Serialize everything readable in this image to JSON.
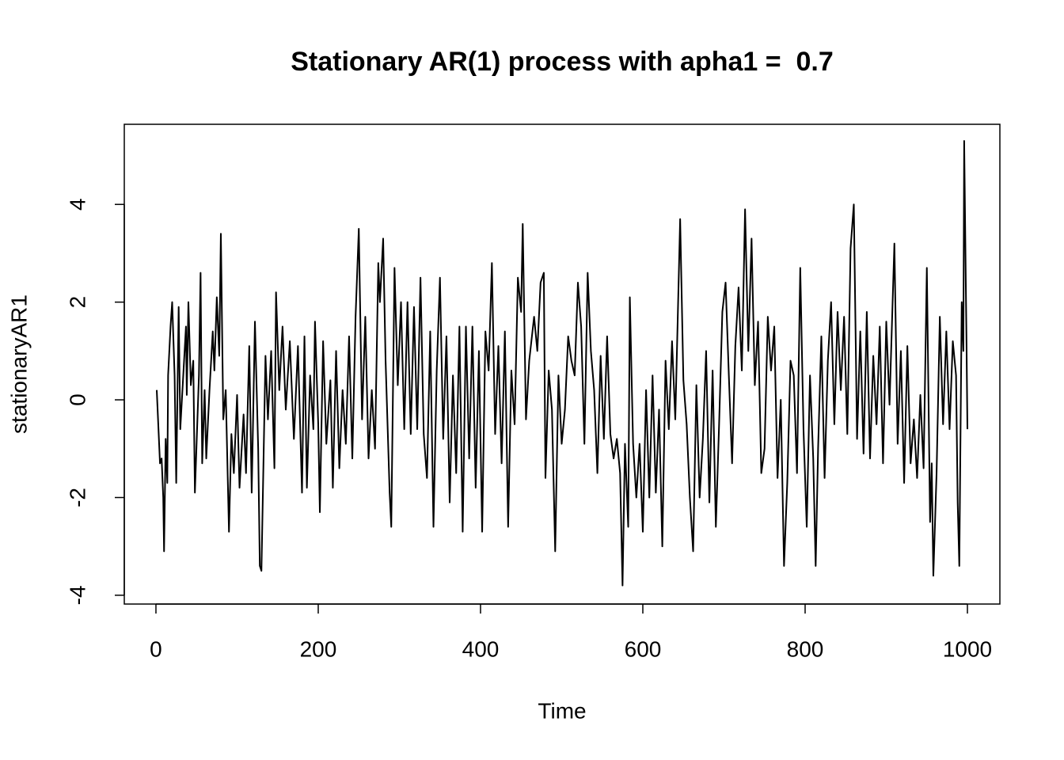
{
  "chart_data": {
    "type": "line",
    "title": "Stationary AR(1) process with apha1 =  0.7",
    "x_label": "Time",
    "y_label": "stationaryAR1",
    "color": "#000000",
    "xlim": [
      -39,
      1040
    ],
    "ylim": [
      -4.18,
      5.64
    ],
    "xticks": [
      0,
      200,
      400,
      600,
      800,
      1000
    ],
    "yticks": [
      -4,
      -2,
      0,
      2,
      4
    ],
    "x": [
      1,
      5,
      7,
      9,
      10,
      12,
      14,
      15,
      18,
      20,
      23,
      25,
      28,
      30,
      33,
      37,
      38,
      40,
      43,
      46,
      48,
      53,
      55,
      57,
      60,
      62,
      66,
      70,
      72,
      75,
      78,
      80,
      83,
      86,
      90,
      93,
      96,
      100,
      103,
      108,
      111,
      115,
      118,
      122,
      126,
      128,
      130,
      135,
      138,
      142,
      146,
      148,
      152,
      156,
      160,
      165,
      170,
      175,
      180,
      183,
      186,
      190,
      194,
      196,
      200,
      202,
      206,
      210,
      215,
      218,
      222,
      226,
      230,
      234,
      238,
      242,
      246,
      250,
      254,
      258,
      262,
      266,
      270,
      274,
      276,
      280,
      283,
      288,
      290,
      294,
      298,
      302,
      306,
      310,
      314,
      318,
      322,
      326,
      330,
      334,
      338,
      342,
      346,
      350,
      354,
      358,
      362,
      366,
      370,
      374,
      378,
      382,
      386,
      390,
      394,
      398,
      402,
      406,
      410,
      414,
      418,
      422,
      426,
      430,
      434,
      438,
      442,
      446,
      450,
      452,
      456,
      460,
      466,
      470,
      474,
      478,
      480,
      484,
      488,
      492,
      496,
      500,
      504,
      508,
      512,
      516,
      520,
      524,
      528,
      532,
      536,
      540,
      544,
      548,
      552,
      556,
      560,
      564,
      568,
      572,
      575,
      578,
      582,
      584,
      588,
      592,
      596,
      600,
      604,
      608,
      612,
      616,
      620,
      624,
      628,
      632,
      636,
      640,
      646,
      650,
      654,
      658,
      662,
      666,
      670,
      674,
      678,
      682,
      686,
      690,
      694,
      698,
      702,
      706,
      710,
      714,
      718,
      722,
      726,
      730,
      734,
      738,
      742,
      746,
      750,
      754,
      758,
      762,
      766,
      770,
      774,
      778,
      782,
      786,
      790,
      794,
      798,
      802,
      806,
      810,
      813,
      816,
      820,
      824,
      828,
      832,
      836,
      840,
      844,
      848,
      852,
      856,
      860,
      864,
      868,
      872,
      876,
      880,
      884,
      888,
      892,
      896,
      900,
      904,
      910,
      914,
      918,
      922,
      926,
      930,
      934,
      938,
      942,
      946,
      950,
      954,
      956,
      958,
      962,
      966,
      970,
      974,
      978,
      982,
      986,
      988,
      990,
      993,
      995,
      996,
      998,
      999,
      1000
    ],
    "values": [
      0.2,
      -1.3,
      -1.2,
      -2,
      -3.1,
      -0.8,
      -1.7,
      0.5,
      1.5,
      2.0,
      0.5,
      -1.7,
      1.9,
      -0.6,
      0.3,
      1.5,
      0.1,
      2.0,
      0.3,
      0.8,
      -1.9,
      0.5,
      2.6,
      -1.3,
      0.2,
      -1.2,
      0.2,
      1.4,
      0.6,
      2.1,
      0.9,
      3.4,
      -0.4,
      0.2,
      -2.7,
      -0.7,
      -1.5,
      0.1,
      -1.8,
      -0.3,
      -1.5,
      1.1,
      -1.9,
      1.6,
      -1.0,
      -3.4,
      -3.5,
      0.9,
      -0.4,
      1.0,
      -1.4,
      2.2,
      0.2,
      1.5,
      -0.2,
      1.2,
      -0.8,
      1.1,
      -1.9,
      1.3,
      -1.8,
      0.5,
      -0.6,
      1.6,
      -0.5,
      -2.3,
      1.2,
      -0.9,
      0.4,
      -1.8,
      1.0,
      -1.4,
      0.2,
      -0.9,
      1.3,
      -1.2,
      1.7,
      3.5,
      -0.4,
      1.7,
      -1.2,
      0.2,
      -1.0,
      2.8,
      2.0,
      3.3,
      0.8,
      -1.9,
      -2.6,
      2.7,
      0.3,
      2.0,
      -0.6,
      2.0,
      -0.7,
      1.9,
      -0.6,
      2.5,
      -0.7,
      -1.6,
      1.4,
      -2.6,
      0.6,
      2.5,
      -0.8,
      1.3,
      -2.1,
      0.5,
      -1.5,
      1.5,
      -2.7,
      1.5,
      -1.2,
      1.5,
      -1.8,
      1.0,
      -2.7,
      1.4,
      0.6,
      2.8,
      -0.7,
      1.1,
      -1.3,
      1.4,
      -2.6,
      0.6,
      -0.5,
      2.5,
      1.8,
      3.6,
      -0.4,
      0.8,
      1.7,
      1.0,
      2.4,
      2.6,
      -1.6,
      0.6,
      -0.2,
      -3.1,
      0.5,
      -0.9,
      -0.2,
      1.3,
      0.8,
      0.5,
      2.4,
      1.5,
      -0.9,
      2.6,
      1.0,
      0.2,
      -1.5,
      0.9,
      -0.8,
      1.3,
      -0.7,
      -1.2,
      -0.8,
      -1.5,
      -3.8,
      -0.9,
      -2.6,
      2.1,
      -0.9,
      -2.0,
      -0.9,
      -2.7,
      0.2,
      -2.0,
      0.5,
      -1.9,
      -0.2,
      -3.0,
      0.8,
      -0.6,
      1.2,
      -0.4,
      3.7,
      0.4,
      -0.5,
      -2.0,
      -3.1,
      0.3,
      -2.0,
      -0.8,
      1.0,
      -2.1,
      0.6,
      -2.6,
      -0.5,
      1.8,
      2.4,
      0.5,
      -1.3,
      1.1,
      2.3,
      0.6,
      3.9,
      1.0,
      3.3,
      0.3,
      1.6,
      -1.5,
      -1.0,
      1.7,
      0.6,
      1.5,
      -1.6,
      0.0,
      -3.4,
      -1.7,
      0.8,
      0.5,
      -1.5,
      2.7,
      -0.6,
      -2.6,
      0.5,
      -1.2,
      -3.4,
      -1.0,
      1.3,
      -1.6,
      0.8,
      2.0,
      -0.5,
      1.8,
      0.2,
      1.7,
      -0.7,
      3.1,
      4.0,
      -0.8,
      1.4,
      -1.1,
      1.8,
      -1.2,
      0.9,
      -0.5,
      1.5,
      -1.3,
      1.6,
      -0.1,
      3.2,
      -0.9,
      1.0,
      -1.7,
      1.1,
      -1.3,
      -0.4,
      -1.6,
      0.1,
      -1.4,
      2.7,
      -2.5,
      -1.3,
      -3.6,
      -1.5,
      1.7,
      -0.5,
      1.4,
      -0.6,
      1.2,
      0.5,
      -2.1,
      -3.4,
      2.0,
      1.0,
      5.3,
      2.4,
      1.0,
      -0.6
    ]
  }
}
